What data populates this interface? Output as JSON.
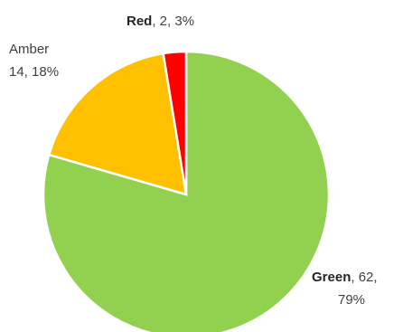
{
  "chart_data": {
    "type": "pie",
    "title": "",
    "start_angle_deg": 0,
    "direction": "clockwise",
    "slices": [
      {
        "category": "Green",
        "value": 62,
        "percent": "79%",
        "color": "#92d050",
        "label_value": ", 62,",
        "label_percent": "79%"
      },
      {
        "category": "Amber",
        "value": 14,
        "percent": "18%",
        "color": "#ffc000",
        "label_value": "14, 18%"
      },
      {
        "category": "Red",
        "value": 2,
        "percent": "3%",
        "color": "#ff0000",
        "label_value": ", 2, 3%"
      }
    ]
  }
}
